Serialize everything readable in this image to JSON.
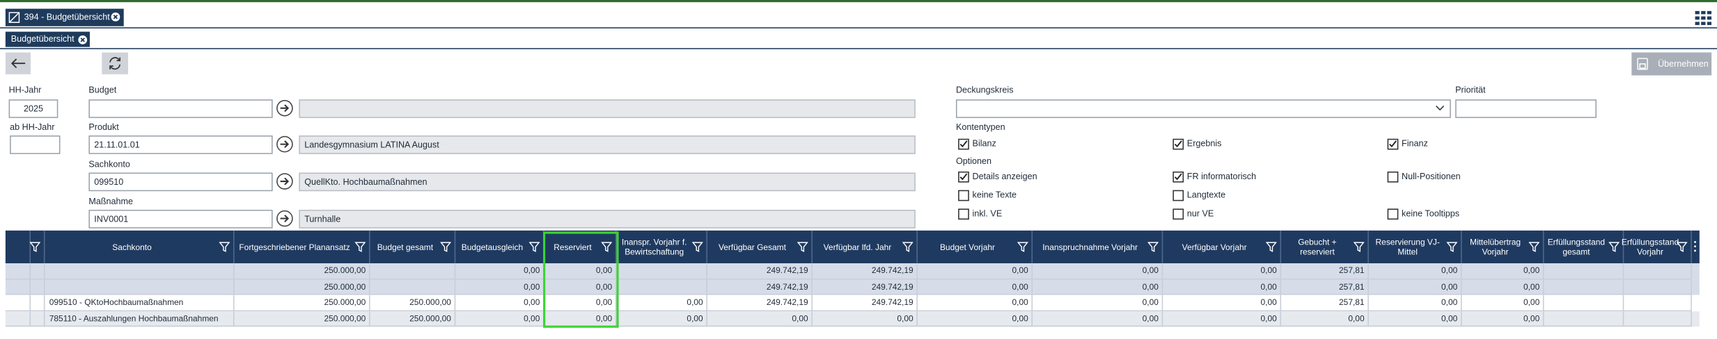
{
  "tabs": {
    "main": "394 - Budgetübersicht",
    "sub": "Budgetübersicht"
  },
  "toolbar": {
    "apply": "Übernehmen"
  },
  "form": {
    "hh_jahr": {
      "label": "HH-Jahr",
      "value": "2025"
    },
    "ab_hh_jahr": {
      "label": "ab HH-Jahr"
    },
    "budget": {
      "label": "Budget"
    },
    "produkt": {
      "label": "Produkt",
      "value": "21.11.01.01",
      "description": "Landesgymnasium LATINA August"
    },
    "sachkonto": {
      "label": "Sachkonto",
      "value": "099510",
      "description": "QuellKto. Hochbaumaßnahmen"
    },
    "massnahme": {
      "label": "Maßnahme",
      "value": "INV0001",
      "description": "Turnhalle"
    },
    "deckungskreis": {
      "label": "Deckungskreis"
    },
    "prioritaet": {
      "label": "Priorität"
    },
    "kontentypen": {
      "label": "Kontentypen",
      "options": [
        {
          "label": "Bilanz",
          "checked": true
        },
        {
          "label": "Ergebnis",
          "checked": true
        },
        {
          "label": "Finanz",
          "checked": true
        }
      ]
    },
    "optionen": {
      "label": "Optionen",
      "options": [
        {
          "label": "Details anzeigen",
          "checked": true
        },
        {
          "label": "FR informatorisch",
          "checked": true
        },
        {
          "label": "Null-Positionen",
          "checked": false
        },
        {
          "label": "keine Texte",
          "checked": false
        },
        {
          "label": "Langtexte",
          "checked": false
        },
        {
          "label": "inkl. VE",
          "checked": false
        },
        {
          "label": "nur VE",
          "checked": false
        },
        {
          "label": "keine Tooltipps",
          "checked": false
        }
      ]
    }
  },
  "table": {
    "columns": [
      null,
      null,
      "Sachkonto",
      "Fortgeschriebener Planansatz",
      "Budget gesamt",
      "Budgetausgleich",
      "Reserviert",
      "Inanspr. Vorjahr f. Bewirtschaftung",
      "Verfügbar Gesamt",
      "Verfügbar lfd. Jahr",
      "Budget Vorjahr",
      "Inanspruchnahme Vorjahr",
      "Verfügbar Vorjahr",
      "Gebucht + reserviert",
      "Reservierung VJ-Mittel",
      "Mittelübertrag Vorjahr",
      "Erfüllungsstand gesamt",
      "Erfüllungsstand Vorjahr"
    ],
    "rows": [
      [
        null,
        null,
        null,
        "250.000,00",
        null,
        "0,00",
        "0,00",
        null,
        "249.742,19",
        "249.742,19",
        "0,00",
        "0,00",
        "0,00",
        "257,81",
        "0,00",
        "0,00",
        null,
        null
      ],
      [
        null,
        null,
        null,
        "250.000,00",
        null,
        "0,00",
        "0,00",
        null,
        "249.742,19",
        "249.742,19",
        "0,00",
        "0,00",
        "0,00",
        "257,81",
        "0,00",
        "0,00",
        null,
        null
      ],
      [
        null,
        null,
        "099510 - QKtoHochbaumaßnahmen",
        "250.000,00",
        "250.000,00",
        "0,00",
        "0,00",
        "0,00",
        "249.742,19",
        "249.742,19",
        "0,00",
        "0,00",
        "0,00",
        "257,81",
        "0,00",
        "0,00",
        null,
        null
      ],
      [
        null,
        null,
        "785110 - Auszahlungen Hochbaumaßnahmen",
        "250.000,00",
        "250.000,00",
        "0,00",
        "0,00",
        "0,00",
        "0,00",
        "0,00",
        "0,00",
        "0,00",
        "0,00",
        "0,00",
        "0,00",
        "0,00",
        null,
        null
      ]
    ]
  }
}
